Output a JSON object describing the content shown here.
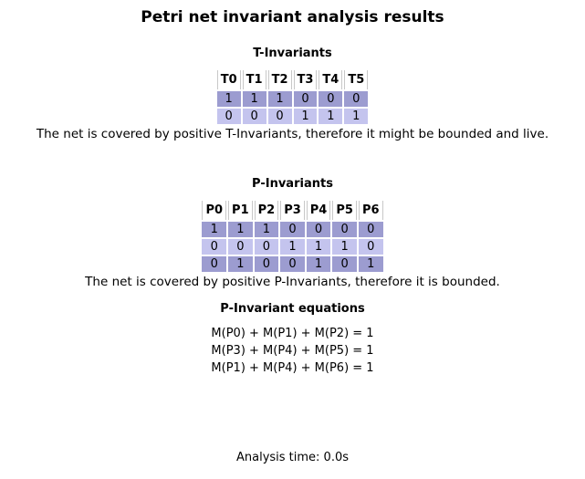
{
  "title": "Petri net invariant analysis results",
  "t_invariants": {
    "heading": "T-Invariants",
    "columns": [
      "T0",
      "T1",
      "T2",
      "T3",
      "T4",
      "T5"
    ],
    "rows": [
      [
        "1",
        "1",
        "1",
        "0",
        "0",
        "0"
      ],
      [
        "0",
        "0",
        "0",
        "1",
        "1",
        "1"
      ]
    ],
    "conclusion": "The net is covered by positive T-Invariants, therefore it might be bounded and live."
  },
  "p_invariants": {
    "heading": "P-Invariants",
    "columns": [
      "P0",
      "P1",
      "P2",
      "P3",
      "P4",
      "P5",
      "P6"
    ],
    "rows": [
      [
        "1",
        "1",
        "1",
        "0",
        "0",
        "0",
        "0"
      ],
      [
        "0",
        "0",
        "0",
        "1",
        "1",
        "1",
        "0"
      ],
      [
        "0",
        "1",
        "0",
        "0",
        "1",
        "0",
        "1"
      ]
    ],
    "conclusion": "The net is covered by positive P-Invariants, therefore it is bounded."
  },
  "p_invariant_equations": {
    "heading": "P-Invariant equations",
    "equations": [
      "M(P0) + M(P1) + M(P2) = 1",
      "M(P3) + M(P4) + M(P5) = 1",
      "M(P1) + M(P4) + M(P6) = 1"
    ]
  },
  "analysis_time": "Analysis time: 0.0s",
  "colors": {
    "row_dark": "#9c9cd0",
    "row_light": "#c4c4ee",
    "header_border": "#c8c8c8"
  }
}
